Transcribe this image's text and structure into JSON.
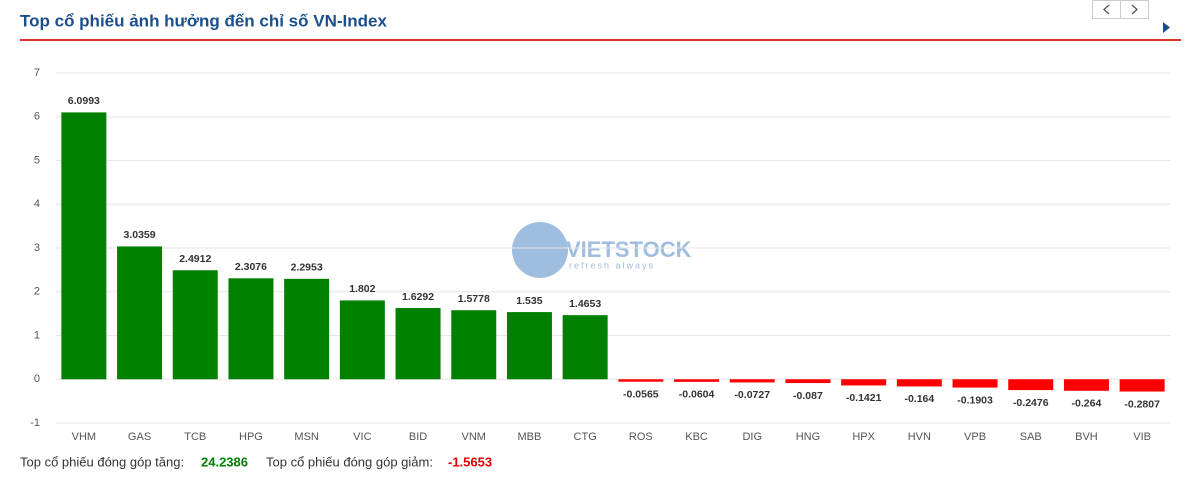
{
  "chart_data": {
    "type": "bar",
    "title": "Top cổ phiếu ảnh hưởng đến chỉ số VN-Index",
    "categories": [
      "VHM",
      "GAS",
      "TCB",
      "HPG",
      "MSN",
      "VIC",
      "BID",
      "VNM",
      "MBB",
      "CTG",
      "ROS",
      "KBC",
      "DIG",
      "HNG",
      "HPX",
      "HVN",
      "VPB",
      "SAB",
      "BVH",
      "VIB"
    ],
    "values": [
      6.0993,
      3.0359,
      2.4912,
      2.3076,
      2.2953,
      1.802,
      1.6292,
      1.5778,
      1.535,
      1.4653,
      -0.0565,
      -0.0604,
      -0.0727,
      -0.087,
      -0.1421,
      -0.164,
      -0.1903,
      -0.2476,
      -0.264,
      -0.2807
    ],
    "positive_color": "#008000",
    "negative_color": "#ff0000",
    "ylim": [
      -1,
      7
    ],
    "yticks": [
      -1,
      0,
      1,
      2,
      3,
      4,
      5,
      6,
      7
    ],
    "grid": true,
    "watermark": {
      "name": "VIETSTOCK",
      "tagline": "refresh always"
    },
    "summary": {
      "up_label": "Top cổ phiếu đóng góp tăng:",
      "up_value": 24.2386,
      "down_label": "Top cổ phiếu đóng góp giảm:",
      "down_value": -1.5653
    }
  }
}
